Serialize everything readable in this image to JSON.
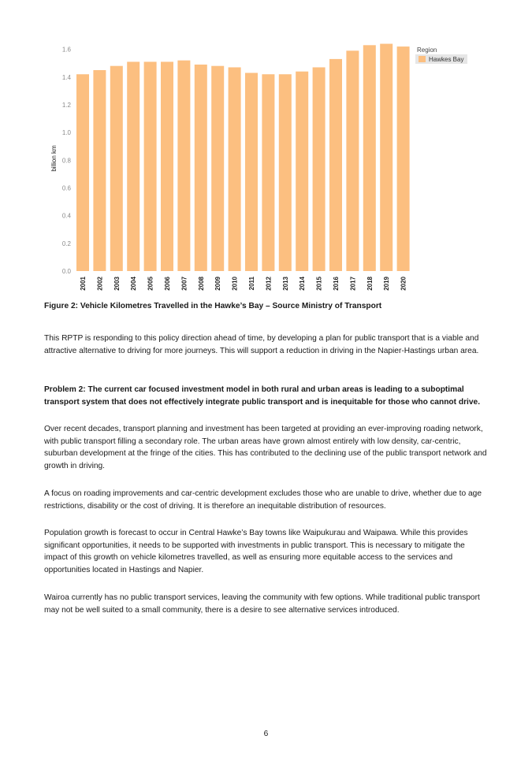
{
  "chart_data": {
    "type": "bar",
    "ylabel": "billion km",
    "ylim": [
      0,
      1.7
    ],
    "yticks": [
      "0.0",
      "0.2",
      "0.4",
      "0.6",
      "0.8",
      "1.0",
      "1.2",
      "1.4",
      "1.6"
    ],
    "grid": false,
    "legend_title": "Region",
    "legend_position": "top-right",
    "categories": [
      "2001",
      "2002",
      "2003",
      "2004",
      "2005",
      "2006",
      "2007",
      "2008",
      "2009",
      "2010",
      "2011",
      "2012",
      "2013",
      "2014",
      "2015",
      "2016",
      "2017",
      "2018",
      "2019",
      "2020"
    ],
    "series": [
      {
        "name": "Hawkes Bay",
        "color": "#fcbf80",
        "values": [
          1.42,
          1.45,
          1.48,
          1.51,
          1.51,
          1.51,
          1.52,
          1.49,
          1.48,
          1.47,
          1.43,
          1.42,
          1.42,
          1.44,
          1.47,
          1.53,
          1.59,
          1.63,
          1.64,
          1.62
        ]
      }
    ]
  },
  "figure_caption": "Figure 2: Vehicle Kilometres Travelled in the Hawke’s Bay – Source Ministry of Transport",
  "paragraphs": {
    "p1": "This RPTP is responding to this policy direction ahead of time, by developing a plan for public transport that is a viable and attractive alternative to driving for more journeys. This will support a reduction in driving in the Napier-Hastings urban area.",
    "problem2": "Problem 2: The current car focused investment model in both rural and urban areas is leading to a suboptimal transport system that does not effectively integrate public transport and is inequitable for those who cannot drive.",
    "p2": "Over recent decades, transport planning and investment has been targeted at providing an ever-improving roading network, with public transport filling a secondary role. The urban areas have grown almost entirely with low density, car-centric, suburban development at the fringe of the cities. This has contributed to the declining use of the public transport network and growth in driving.",
    "p3": "A focus on roading improvements and car-centric development excludes those who are unable to drive, whether due to age restrictions, disability or the cost of driving. It is therefore an inequitable distribution of resources.",
    "p4": "Population growth is forecast to occur in Central Hawke’s Bay towns like Waipukurau and Waipawa. While this provides significant opportunities, it needs to be supported with investments in public transport. This is necessary to mitigate the impact of this growth on vehicle kilometres travelled, as well as ensuring more equitable access to the services and opportunities located in Hastings and Napier.",
    "p5": "Wairoa currently has no public transport services, leaving the community with few options. While traditional public transport may not be well suited to a small community, there is a desire to see alternative services introduced."
  },
  "page_number": "6"
}
